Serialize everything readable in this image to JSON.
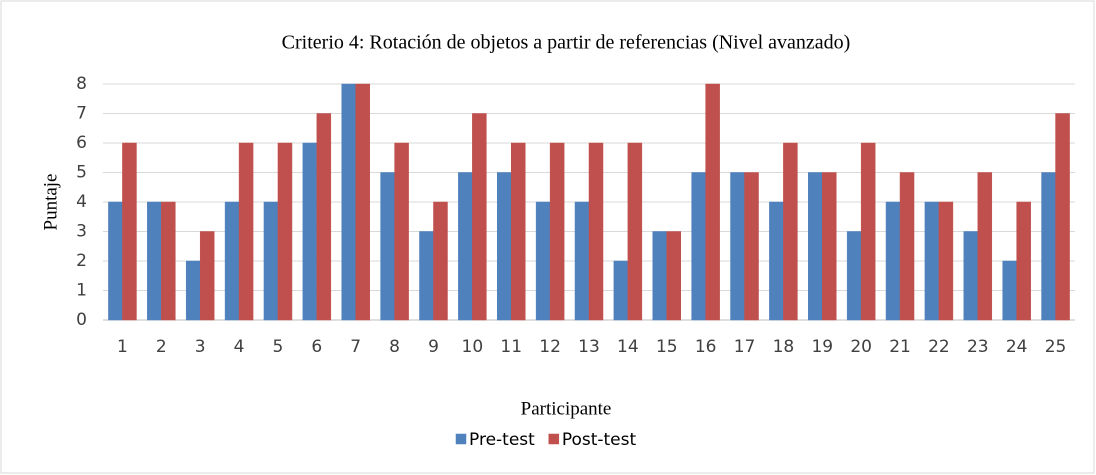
{
  "chart_data": {
    "type": "bar",
    "title": "Criterio 4: Rotación de objetos a partir de referencias (Nivel avanzado)",
    "x_label": "Participante",
    "y_label": "Puntaje",
    "categories": [
      "1",
      "2",
      "3",
      "4",
      "5",
      "6",
      "7",
      "8",
      "9",
      "10",
      "11",
      "12",
      "13",
      "14",
      "15",
      "16",
      "17",
      "18",
      "19",
      "20",
      "21",
      "22",
      "23",
      "24",
      "25"
    ],
    "series": [
      {
        "name": "Pre-test",
        "color": "#4f81bd",
        "values": [
          4,
          4,
          2,
          4,
          4,
          6,
          8,
          5,
          3,
          5,
          5,
          4,
          4,
          2,
          3,
          5,
          5,
          4,
          5,
          3,
          4,
          4,
          3,
          2,
          5
        ]
      },
      {
        "name": "Post-test",
        "color": "#c0504d",
        "values": [
          6,
          4,
          3,
          6,
          6,
          7,
          8,
          6,
          4,
          7,
          6,
          6,
          6,
          6,
          3,
          8,
          5,
          6,
          5,
          6,
          5,
          4,
          5,
          4,
          7
        ]
      }
    ],
    "ylim": [
      0,
      8
    ],
    "yticks": [
      0,
      1,
      2,
      3,
      4,
      5,
      6,
      7,
      8
    ],
    "grid": true,
    "legend": "bottom"
  }
}
